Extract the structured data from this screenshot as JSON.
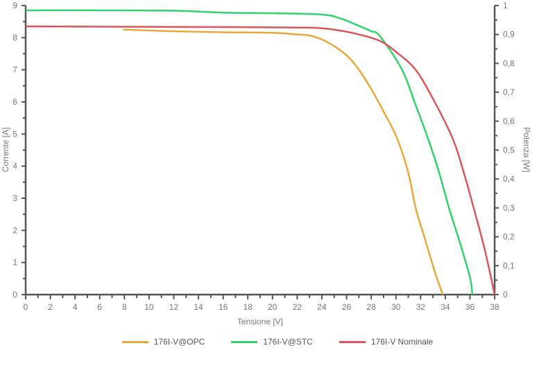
{
  "chart_data": {
    "type": "line",
    "title": "",
    "xlabel": "Tensione [V]",
    "ylabel": "Corrente [A]",
    "y2label": "Potenza [W]",
    "xlim": [
      0,
      38
    ],
    "ylim": [
      0,
      9
    ],
    "y2lim": [
      0,
      1
    ],
    "xticks": [
      "0",
      "2",
      "4",
      "6",
      "8",
      "10",
      "12",
      "14",
      "16",
      "18",
      "20",
      "22",
      "24",
      "26",
      "28",
      "30",
      "32",
      "34",
      "36",
      "38"
    ],
    "yticks": [
      "0",
      "1",
      "2",
      "3",
      "4",
      "5",
      "6",
      "7",
      "8",
      "9"
    ],
    "y2ticks": [
      "0",
      "0,1",
      "0,2",
      "0,3",
      "0,4",
      "0,5",
      "0,6",
      "0,7",
      "0,8",
      "0,9",
      "1"
    ],
    "legend_position": "bottom",
    "series": [
      {
        "name": "176I-V@OPC",
        "color": "#E8A838",
        "x": [
          7.9,
          12,
          16,
          20,
          22,
          23.2,
          24.5,
          26,
          27,
          28,
          29,
          30.1,
          31,
          31.6,
          32.3,
          33,
          33.3,
          33.8
        ],
        "y": [
          8.25,
          8.2,
          8.17,
          8.15,
          8.1,
          8.05,
          7.85,
          7.45,
          7.0,
          6.4,
          5.7,
          4.86,
          3.8,
          2.7,
          1.8,
          0.9,
          0.54,
          0
        ]
      },
      {
        "name": "176I-V@STC",
        "color": "#2ED36A",
        "x": [
          0,
          6,
          12,
          16,
          20,
          24,
          25.5,
          26.8,
          28,
          28.7,
          30.5,
          31.6,
          32.6,
          33.5,
          34.3,
          35.2,
          36.0,
          36.2
        ],
        "y": [
          8.85,
          8.85,
          8.84,
          8.78,
          8.76,
          8.72,
          8.6,
          8.4,
          8.2,
          8.05,
          7.0,
          5.9,
          4.86,
          3.8,
          2.7,
          1.6,
          0.54,
          0
        ]
      },
      {
        "name": "176I-V Nominale",
        "color": "#D9555B",
        "x": [
          0,
          8,
          16,
          20,
          23.2,
          25,
          27,
          28.8,
          30.2,
          31.6,
          33,
          34.6,
          35.5,
          36.3,
          37.2,
          38
        ],
        "y": [
          8.35,
          8.34,
          8.33,
          8.32,
          8.31,
          8.25,
          8.1,
          7.88,
          7.5,
          7.0,
          6.1,
          4.86,
          3.8,
          2.7,
          1.4,
          0
        ]
      }
    ]
  }
}
